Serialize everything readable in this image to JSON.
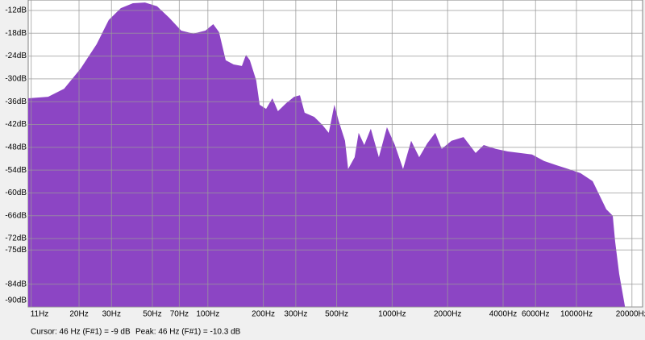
{
  "chart_data": {
    "type": "area",
    "xscale": "log",
    "color": "#8c45c4",
    "grid": true,
    "x": [
      10.6,
      13.6,
      16.6,
      20.4,
      24.9,
      29.0,
      33.7,
      39.2,
      45.6,
      53.0,
      61.7,
      71.7,
      83.4,
      97,
      107,
      115,
      125,
      138,
      153,
      161,
      169,
      183,
      191,
      207,
      224,
      240,
      266,
      294,
      316,
      335,
      378,
      418,
      453,
      486,
      512,
      555,
      577,
      626,
      658,
      706,
      766,
      847,
      937,
      1035,
      1146,
      1268,
      1402,
      1549,
      1714,
      1858,
      2099,
      2439,
      2838,
      3139,
      3648,
      4246,
      4943,
      5741,
      6683,
      7780,
      9036,
      10520,
      12250,
      13520,
      14520,
      15740,
      16220,
      17060,
      18320
    ],
    "values": [
      -35.1,
      -34.7,
      -32.6,
      -27.3,
      -20.9,
      -14.5,
      -11.4,
      -10.1,
      -9.9,
      -10.9,
      -13.9,
      -17.3,
      -18.1,
      -17.3,
      -15.6,
      -17.7,
      -25.1,
      -26.2,
      -26.6,
      -23.7,
      -25.1,
      -30.4,
      -36.8,
      -37.9,
      -35.1,
      -38.5,
      -36.4,
      -34.7,
      -34.3,
      -38.9,
      -40.0,
      -42.1,
      -44.2,
      -36.8,
      -41.0,
      -46.3,
      -53.7,
      -50.6,
      -44.2,
      -47.4,
      -43.1,
      -50.6,
      -42.7,
      -47.4,
      -53.7,
      -46.3,
      -50.6,
      -47.0,
      -44.2,
      -48.4,
      -46.3,
      -45.3,
      -49.5,
      -47.4,
      -48.4,
      -49.1,
      -49.5,
      -49.9,
      -51.6,
      -52.7,
      -53.7,
      -54.8,
      -56.9,
      -61.2,
      -64.3,
      -66.0,
      -72.8,
      -81.3,
      -89.8
    ],
    "xlim": [
      10.6,
      22850
    ],
    "ylim": [
      -90,
      -9.25
    ],
    "xticks": [
      {
        "value": 11,
        "label": "11Hz"
      },
      {
        "value": 20,
        "label": "20Hz"
      },
      {
        "value": 30,
        "label": "30Hz"
      },
      {
        "value": 50,
        "label": "50Hz"
      },
      {
        "value": 70,
        "label": "70Hz"
      },
      {
        "value": 100,
        "label": "100Hz"
      },
      {
        "value": 200,
        "label": "200Hz"
      },
      {
        "value": 300,
        "label": "300Hz"
      },
      {
        "value": 500,
        "label": "500Hz"
      },
      {
        "value": 1000,
        "label": "1000Hz"
      },
      {
        "value": 2000,
        "label": "2000Hz"
      },
      {
        "value": 4000,
        "label": "4000Hz"
      },
      {
        "value": 6000,
        "label": "6000Hz"
      },
      {
        "value": 10000,
        "label": "10000Hz"
      },
      {
        "value": 20000,
        "label": "20000Hz"
      }
    ],
    "yticks": [
      {
        "value": -12,
        "label": "-12dB"
      },
      {
        "value": -18,
        "label": "-18dB"
      },
      {
        "value": -24,
        "label": "-24dB"
      },
      {
        "value": -30,
        "label": "-30dB"
      },
      {
        "value": -36,
        "label": "-36dB"
      },
      {
        "value": -42,
        "label": "-42dB"
      },
      {
        "value": -48,
        "label": "-48dB"
      },
      {
        "value": -54,
        "label": "-54dB"
      },
      {
        "value": -60,
        "label": "-60dB"
      },
      {
        "value": -66,
        "label": "-66dB"
      },
      {
        "value": -72,
        "label": "-72dB"
      },
      {
        "value": -75,
        "label": "-75dB"
      },
      {
        "value": -84,
        "label": "-84dB"
      },
      {
        "value": -90,
        "label": "-90dB"
      }
    ]
  },
  "status": {
    "cursor": "Cursor: 46 Hz (F#1) = -9 dB",
    "peak": "Peak: 46 Hz (F#1) = -10.3 dB"
  }
}
